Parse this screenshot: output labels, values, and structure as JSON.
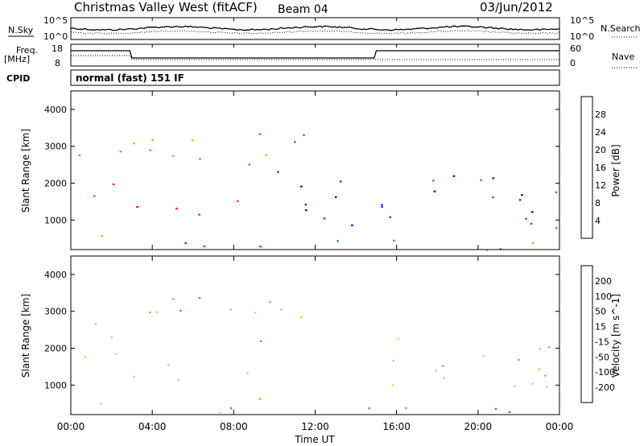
{
  "header": {
    "station": "Christmas Valley West (fitACF)",
    "beam": "Beam 04",
    "date": "03/Jun/2012"
  },
  "top_panels": {
    "nsky_label": "N.Sky",
    "nsky_ticks": [
      "10^5",
      "10^0"
    ],
    "nsearch_label": "N.Search",
    "nsearch_ticks": [
      "10^5",
      "10^0"
    ],
    "freq_label": "Freq.",
    "freq_unit": "[MHz]",
    "freq_ticks": [
      "18",
      "8"
    ],
    "nave_label": "Nave",
    "nave_ticks": [
      "60",
      "0"
    ],
    "cpid_label": "CPID",
    "cpid_text": "normal (fast) 151 IF"
  },
  "colors": {
    "power": [
      "#0000ff",
      "#1e3cbe",
      "#2d6e8c",
      "#3c8c5a",
      "#50a03c",
      "#a0c82d",
      "#ffa000",
      "#ff7800",
      "#ff4600",
      "#ff1e00",
      "#ff0000"
    ],
    "velocity": [
      "#ff0000",
      "#ff5a00",
      "#ff9600",
      "#ffc850",
      "#c8c8c8",
      "#c8c8c8",
      "#78d246",
      "#50aa3c",
      "#3c8c78",
      "#3c64b4",
      "#1e32c8"
    ]
  },
  "chart_data": [
    {
      "type": "heatmap",
      "name": "Power",
      "ylabel": "Slant Range [km]",
      "ylim": [
        200,
        4500
      ],
      "yticks": [
        1000,
        2000,
        3000,
        4000
      ],
      "xlim": [
        0,
        24
      ],
      "colorbar": {
        "label": "Power [dB]",
        "range": [
          0,
          32
        ],
        "ticks": [
          4,
          8,
          12,
          16,
          20,
          24,
          28
        ]
      },
      "scatter_bands": [
        {
          "t": [
            0.2,
            3.0
          ],
          "r": [
            2600,
            3400
          ],
          "level": 0.55
        },
        {
          "t": [
            0.3,
            3.0
          ],
          "r": [
            1600,
            2400
          ],
          "level": 0.85
        },
        {
          "t": [
            0.3,
            2.8
          ],
          "r": [
            400,
            700
          ],
          "level": 0.5
        },
        {
          "t": [
            3.0,
            9.8
          ],
          "r": [
            1100,
            1600
          ],
          "level": 0.85
        },
        {
          "t": [
            3.0,
            9.8
          ],
          "r": [
            2200,
            3400
          ],
          "level": 0.6
        },
        {
          "t": [
            4.5,
            9.8
          ],
          "r": [
            200,
            700
          ],
          "level": 0.9
        },
        {
          "t": [
            10.0,
            12.0
          ],
          "r": [
            2400,
            3400
          ],
          "level": 0.2
        },
        {
          "t": [
            10.0,
            14.0
          ],
          "r": [
            600,
            2400
          ],
          "level": 0.15
        },
        {
          "t": [
            15.0,
            24.0
          ],
          "r": [
            900,
            2400
          ],
          "level": 0.2
        },
        {
          "t": [
            10.0,
            24.0
          ],
          "r": [
            200,
            500
          ],
          "level": 0.35
        },
        {
          "t": [
            22.5,
            23.8
          ],
          "r": [
            500,
            900
          ],
          "level": 0.8
        }
      ]
    },
    {
      "type": "heatmap",
      "name": "Velocity",
      "ylabel": "Slant Range [km]",
      "xlabel": "Time UT",
      "ylim": [
        200,
        4500
      ],
      "yticks": [
        1000,
        2000,
        3000,
        4000
      ],
      "xlim": [
        0,
        24
      ],
      "xticks": [
        "00:00",
        "04:00",
        "08:00",
        "12:00",
        "16:00",
        "20:00",
        "00:00"
      ],
      "colorbar": {
        "label": "Velocity [m s^-1]",
        "ticks": [
          "-200",
          "-100",
          "-50",
          "-15",
          "15",
          "50",
          "100",
          "200"
        ]
      },
      "scatter_bands": [
        {
          "t": [
            0.2,
            3.0
          ],
          "r": [
            1600,
            2800
          ],
          "level": 0.45
        },
        {
          "t": [
            0.2,
            3.0
          ],
          "r": [
            400,
            700
          ],
          "level": 0.45
        },
        {
          "t": [
            3.0,
            9.8
          ],
          "r": [
            1100,
            1600
          ],
          "level": 0.45
        },
        {
          "t": [
            3.0,
            9.8
          ],
          "r": [
            2200,
            3400
          ],
          "level": 0.5
        },
        {
          "t": [
            4.5,
            9.8
          ],
          "r": [
            200,
            700
          ],
          "level": 0.15
        },
        {
          "t": [
            10.0,
            12.0
          ],
          "r": [
            2400,
            3400
          ],
          "level": 0.35
        },
        {
          "t": [
            15.0,
            24.0
          ],
          "r": [
            900,
            2400
          ],
          "level": 0.45
        },
        {
          "t": [
            12.0,
            24.0
          ],
          "r": [
            200,
            500
          ],
          "level": 0.65
        }
      ]
    }
  ]
}
